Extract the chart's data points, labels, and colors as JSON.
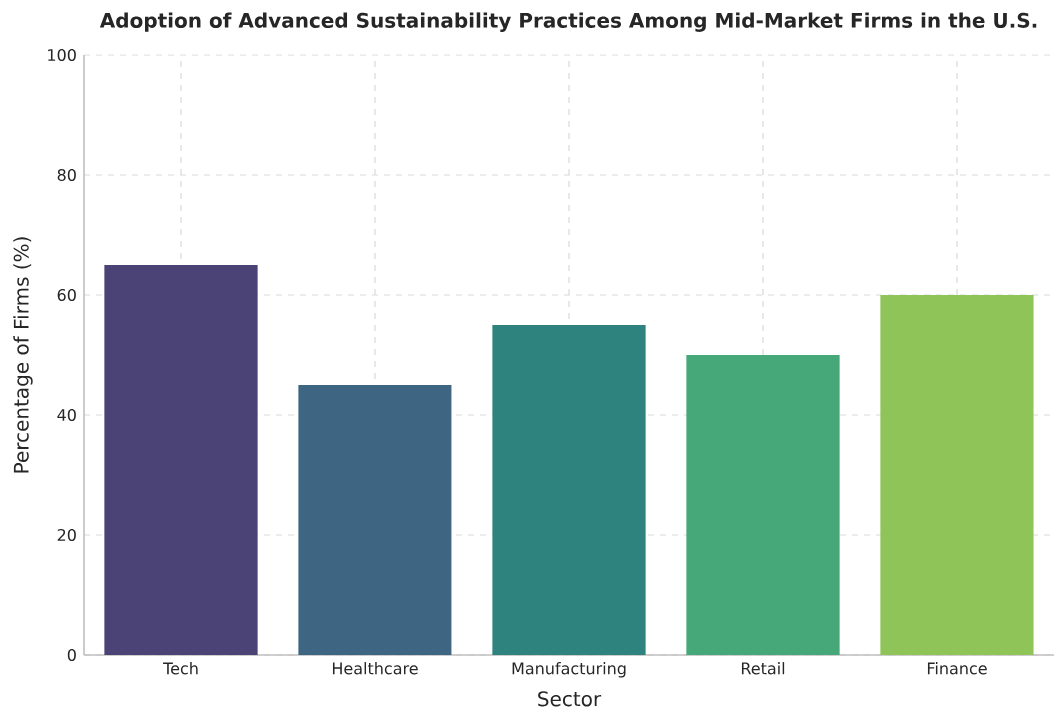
{
  "chart_data": {
    "type": "bar",
    "title": "Adoption of Advanced Sustainability Practices Among Mid-Market Firms in the U.S.",
    "xlabel": "Sector",
    "ylabel": "Percentage of Firms (%)",
    "categories": [
      "Tech",
      "Healthcare",
      "Manufacturing",
      "Retail",
      "Finance"
    ],
    "values": [
      65,
      45,
      55,
      50,
      60
    ],
    "colors": [
      "#4b4276",
      "#3e6682",
      "#2e837e",
      "#46a778",
      "#8fc558"
    ],
    "ylim": [
      0,
      100
    ],
    "yticks": [
      0,
      20,
      40,
      60,
      80,
      100
    ],
    "grid": true
  }
}
